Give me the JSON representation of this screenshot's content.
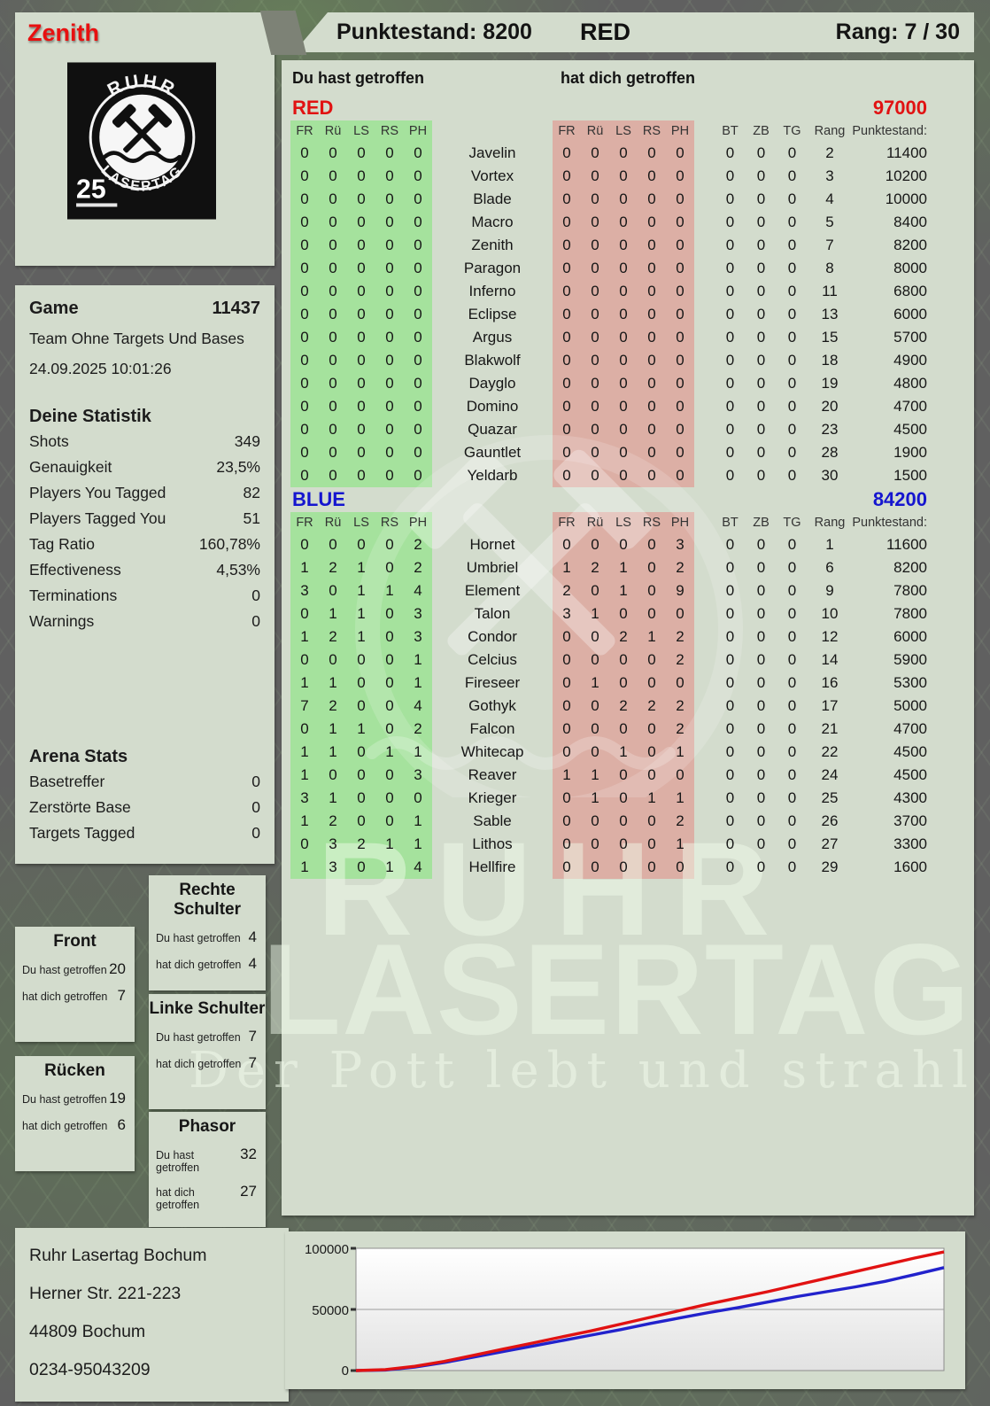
{
  "header": {
    "player": "Zenith",
    "score_text": "Punktestand: 8200",
    "team": "RED",
    "rank_text": "Rang: 7 / 30"
  },
  "logo": {
    "arc_top": "RUHR",
    "arc_bottom": "LASERTAG",
    "badge": "25"
  },
  "sidebar": {
    "game_label": "Game",
    "game_number": "11437",
    "mode": "Team Ohne Targets Und Bases",
    "datetime": "24.09.2025 10:01:26",
    "stats_title": "Deine Statistik",
    "stats": [
      [
        "Shots",
        "349"
      ],
      [
        "Genauigkeit",
        "23,5%"
      ],
      [
        "Players You Tagged",
        "82"
      ],
      [
        "Players Tagged You",
        "51"
      ],
      [
        "Tag Ratio",
        "160,78%"
      ],
      [
        "Effectiveness",
        "4,53%"
      ],
      [
        "Terminations",
        "0"
      ],
      [
        "Warnings",
        "0"
      ]
    ],
    "arena_title": "Arena Stats",
    "arena": [
      [
        "Basetreffer",
        "0"
      ],
      [
        "Zerstörte Base",
        "0"
      ],
      [
        "Targets Tagged",
        "0"
      ]
    ]
  },
  "body_parts": {
    "hit_label": "Du hast getroffen",
    "got_label": "hat dich getroffen",
    "parts": [
      {
        "key": "front",
        "title": "Front",
        "hit": "20",
        "got": "7"
      },
      {
        "key": "ruecken",
        "title": "Rücken",
        "hit": "19",
        "got": "6"
      },
      {
        "key": "rechte",
        "title": "Rechte Schulter",
        "hit": "4",
        "got": "4"
      },
      {
        "key": "linke",
        "title": "Linke Schulter",
        "hit": "7",
        "got": "7"
      },
      {
        "key": "phasor",
        "title": "Phasor",
        "hit": "32",
        "got": "27"
      }
    ]
  },
  "table": {
    "left_header": "Du hast getroffen",
    "right_header": "hat dich getroffen",
    "hit_cols": [
      "FR",
      "Rü",
      "LS",
      "RS",
      "PH"
    ],
    "extra_cols": [
      "BT",
      "ZB",
      "TG",
      "Rang"
    ],
    "score_col": "Punktestand:",
    "teams": [
      {
        "name": "RED",
        "color": "#e11212",
        "score": "97000",
        "rows": [
          {
            "you": [
              0,
              0,
              0,
              0,
              0
            ],
            "name": "Javelin",
            "them": [
              0,
              0,
              0,
              0,
              0
            ],
            "bt": 0,
            "zb": 0,
            "tg": 0,
            "rang": 2,
            "punkte": "11400"
          },
          {
            "you": [
              0,
              0,
              0,
              0,
              0
            ],
            "name": "Vortex",
            "them": [
              0,
              0,
              0,
              0,
              0
            ],
            "bt": 0,
            "zb": 0,
            "tg": 0,
            "rang": 3,
            "punkte": "10200"
          },
          {
            "you": [
              0,
              0,
              0,
              0,
              0
            ],
            "name": "Blade",
            "them": [
              0,
              0,
              0,
              0,
              0
            ],
            "bt": 0,
            "zb": 0,
            "tg": 0,
            "rang": 4,
            "punkte": "10000"
          },
          {
            "you": [
              0,
              0,
              0,
              0,
              0
            ],
            "name": "Macro",
            "them": [
              0,
              0,
              0,
              0,
              0
            ],
            "bt": 0,
            "zb": 0,
            "tg": 0,
            "rang": 5,
            "punkte": "8400"
          },
          {
            "you": [
              0,
              0,
              0,
              0,
              0
            ],
            "name": "Zenith",
            "them": [
              0,
              0,
              0,
              0,
              0
            ],
            "bt": 0,
            "zb": 0,
            "tg": 0,
            "rang": 7,
            "punkte": "8200"
          },
          {
            "you": [
              0,
              0,
              0,
              0,
              0
            ],
            "name": "Paragon",
            "them": [
              0,
              0,
              0,
              0,
              0
            ],
            "bt": 0,
            "zb": 0,
            "tg": 0,
            "rang": 8,
            "punkte": "8000"
          },
          {
            "you": [
              0,
              0,
              0,
              0,
              0
            ],
            "name": "Inferno",
            "them": [
              0,
              0,
              0,
              0,
              0
            ],
            "bt": 0,
            "zb": 0,
            "tg": 0,
            "rang": 11,
            "punkte": "6800"
          },
          {
            "you": [
              0,
              0,
              0,
              0,
              0
            ],
            "name": "Eclipse",
            "them": [
              0,
              0,
              0,
              0,
              0
            ],
            "bt": 0,
            "zb": 0,
            "tg": 0,
            "rang": 13,
            "punkte": "6000"
          },
          {
            "you": [
              0,
              0,
              0,
              0,
              0
            ],
            "name": "Argus",
            "them": [
              0,
              0,
              0,
              0,
              0
            ],
            "bt": 0,
            "zb": 0,
            "tg": 0,
            "rang": 15,
            "punkte": "5700"
          },
          {
            "you": [
              0,
              0,
              0,
              0,
              0
            ],
            "name": "Blakwolf",
            "them": [
              0,
              0,
              0,
              0,
              0
            ],
            "bt": 0,
            "zb": 0,
            "tg": 0,
            "rang": 18,
            "punkte": "4900"
          },
          {
            "you": [
              0,
              0,
              0,
              0,
              0
            ],
            "name": "Dayglo",
            "them": [
              0,
              0,
              0,
              0,
              0
            ],
            "bt": 0,
            "zb": 0,
            "tg": 0,
            "rang": 19,
            "punkte": "4800"
          },
          {
            "you": [
              0,
              0,
              0,
              0,
              0
            ],
            "name": "Domino",
            "them": [
              0,
              0,
              0,
              0,
              0
            ],
            "bt": 0,
            "zb": 0,
            "tg": 0,
            "rang": 20,
            "punkte": "4700"
          },
          {
            "you": [
              0,
              0,
              0,
              0,
              0
            ],
            "name": "Quazar",
            "them": [
              0,
              0,
              0,
              0,
              0
            ],
            "bt": 0,
            "zb": 0,
            "tg": 0,
            "rang": 23,
            "punkte": "4500"
          },
          {
            "you": [
              0,
              0,
              0,
              0,
              0
            ],
            "name": "Gauntlet",
            "them": [
              0,
              0,
              0,
              0,
              0
            ],
            "bt": 0,
            "zb": 0,
            "tg": 0,
            "rang": 28,
            "punkte": "1900"
          },
          {
            "you": [
              0,
              0,
              0,
              0,
              0
            ],
            "name": "Yeldarb",
            "them": [
              0,
              0,
              0,
              0,
              0
            ],
            "bt": 0,
            "zb": 0,
            "tg": 0,
            "rang": 30,
            "punkte": "1500"
          }
        ]
      },
      {
        "name": "BLUE",
        "color": "#1515cf",
        "score": "84200",
        "rows": [
          {
            "you": [
              0,
              0,
              0,
              0,
              2
            ],
            "name": "Hornet",
            "them": [
              0,
              0,
              0,
              0,
              3
            ],
            "bt": 0,
            "zb": 0,
            "tg": 0,
            "rang": 1,
            "punkte": "11600"
          },
          {
            "you": [
              1,
              2,
              1,
              0,
              2
            ],
            "name": "Umbriel",
            "them": [
              1,
              2,
              1,
              0,
              2
            ],
            "bt": 0,
            "zb": 0,
            "tg": 0,
            "rang": 6,
            "punkte": "8200"
          },
          {
            "you": [
              3,
              0,
              1,
              1,
              4
            ],
            "name": "Element",
            "them": [
              2,
              0,
              1,
              0,
              9
            ],
            "bt": 0,
            "zb": 0,
            "tg": 0,
            "rang": 9,
            "punkte": "7800"
          },
          {
            "you": [
              0,
              1,
              1,
              0,
              3
            ],
            "name": "Talon",
            "them": [
              3,
              1,
              0,
              0,
              0
            ],
            "bt": 0,
            "zb": 0,
            "tg": 0,
            "rang": 10,
            "punkte": "7800"
          },
          {
            "you": [
              1,
              2,
              1,
              0,
              3
            ],
            "name": "Condor",
            "them": [
              0,
              0,
              2,
              1,
              2
            ],
            "bt": 0,
            "zb": 0,
            "tg": 0,
            "rang": 12,
            "punkte": "6000"
          },
          {
            "you": [
              0,
              0,
              0,
              0,
              1
            ],
            "name": "Celcius",
            "them": [
              0,
              0,
              0,
              0,
              2
            ],
            "bt": 0,
            "zb": 0,
            "tg": 0,
            "rang": 14,
            "punkte": "5900"
          },
          {
            "you": [
              1,
              1,
              0,
              0,
              1
            ],
            "name": "Fireseer",
            "them": [
              0,
              1,
              0,
              0,
              0
            ],
            "bt": 0,
            "zb": 0,
            "tg": 0,
            "rang": 16,
            "punkte": "5300"
          },
          {
            "you": [
              7,
              2,
              0,
              0,
              4
            ],
            "name": "Gothyk",
            "them": [
              0,
              0,
              2,
              2,
              2
            ],
            "bt": 0,
            "zb": 0,
            "tg": 0,
            "rang": 17,
            "punkte": "5000"
          },
          {
            "you": [
              0,
              1,
              1,
              0,
              2
            ],
            "name": "Falcon",
            "them": [
              0,
              0,
              0,
              0,
              2
            ],
            "bt": 0,
            "zb": 0,
            "tg": 0,
            "rang": 21,
            "punkte": "4700"
          },
          {
            "you": [
              1,
              1,
              0,
              1,
              1
            ],
            "name": "Whitecap",
            "them": [
              0,
              0,
              1,
              0,
              1
            ],
            "bt": 0,
            "zb": 0,
            "tg": 0,
            "rang": 22,
            "punkte": "4500"
          },
          {
            "you": [
              1,
              0,
              0,
              0,
              3
            ],
            "name": "Reaver",
            "them": [
              1,
              1,
              0,
              0,
              0
            ],
            "bt": 0,
            "zb": 0,
            "tg": 0,
            "rang": 24,
            "punkte": "4500"
          },
          {
            "you": [
              3,
              1,
              0,
              0,
              0
            ],
            "name": "Krieger",
            "them": [
              0,
              1,
              0,
              1,
              1
            ],
            "bt": 0,
            "zb": 0,
            "tg": 0,
            "rang": 25,
            "punkte": "4300"
          },
          {
            "you": [
              1,
              2,
              0,
              0,
              1
            ],
            "name": "Sable",
            "them": [
              0,
              0,
              0,
              0,
              2
            ],
            "bt": 0,
            "zb": 0,
            "tg": 0,
            "rang": 26,
            "punkte": "3700"
          },
          {
            "you": [
              0,
              3,
              2,
              1,
              1
            ],
            "name": "Lithos",
            "them": [
              0,
              0,
              0,
              0,
              1
            ],
            "bt": 0,
            "zb": 0,
            "tg": 0,
            "rang": 27,
            "punkte": "3300"
          },
          {
            "you": [
              1,
              3,
              0,
              1,
              4
            ],
            "name": "Hellfire",
            "them": [
              0,
              0,
              0,
              0,
              0
            ],
            "bt": 0,
            "zb": 0,
            "tg": 0,
            "rang": 29,
            "punkte": "1600"
          }
        ]
      }
    ]
  },
  "watermark": {
    "line1": "RUHR",
    "line2": "LASERTAG",
    "tagline": "Der Pott lebt und strahlt"
  },
  "footer": {
    "lines": [
      "Ruhr Lasertag Bochum",
      "Herner Str. 221-223",
      "44809 Bochum",
      "0234-95043209"
    ]
  },
  "colors": {
    "panel": "#d3dccd",
    "green_block": "#a5e29d",
    "red_block": "#dcafa5",
    "accent_red": "#e11212",
    "accent_blue": "#1515cf"
  },
  "chart_data": {
    "type": "line",
    "title": "",
    "xlabel": "",
    "ylabel": "",
    "ylim": [
      0,
      100000
    ],
    "yticks": [
      "100000",
      "50000",
      "0"
    ],
    "grid": "horizontal",
    "legend": "none",
    "series": [
      {
        "name": "RED",
        "color": "#e11212",
        "values": [
          0,
          800,
          3500,
          7500,
          12500,
          17500,
          22500,
          27500,
          32500,
          38000,
          43500,
          49000,
          54500,
          59500,
          64500,
          70000,
          75500,
          81000,
          86500,
          92000,
          97000
        ]
      },
      {
        "name": "BLUE",
        "color": "#2222cc",
        "values": [
          0,
          400,
          2800,
          6500,
          11000,
          15500,
          20000,
          24500,
          29000,
          33500,
          38500,
          43000,
          47500,
          51500,
          56000,
          60500,
          64500,
          68500,
          73000,
          78500,
          84200
        ]
      }
    ]
  }
}
